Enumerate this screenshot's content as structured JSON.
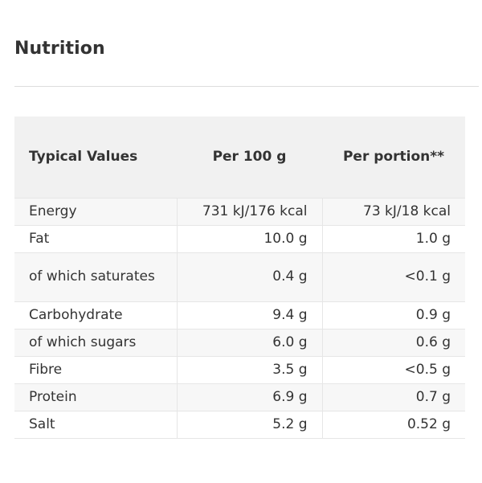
{
  "section": {
    "title": "Nutrition"
  },
  "table": {
    "headers": [
      "Typical Values",
      "Per 100 g",
      "Per portion**"
    ],
    "rows": [
      {
        "label": "Energy",
        "per100": "731 kJ/176 kcal",
        "portion": "73 kJ/18 kcal"
      },
      {
        "label": "Fat",
        "per100": "10.0 g",
        "portion": "1.0 g"
      },
      {
        "label": "of which saturates",
        "per100": "0.4 g",
        "portion": "<0.1 g"
      },
      {
        "label": "Carbohydrate",
        "per100": "9.4 g",
        "portion": "0.9 g"
      },
      {
        "label": "of which sugars",
        "per100": "6.0 g",
        "portion": "0.6 g"
      },
      {
        "label": "Fibre",
        "per100": "3.5 g",
        "portion": "<0.5 g"
      },
      {
        "label": "Protein",
        "per100": "6.9 g",
        "portion": "0.7 g"
      },
      {
        "label": "Salt",
        "per100": "5.2 g",
        "portion": "0.52 g"
      }
    ]
  }
}
